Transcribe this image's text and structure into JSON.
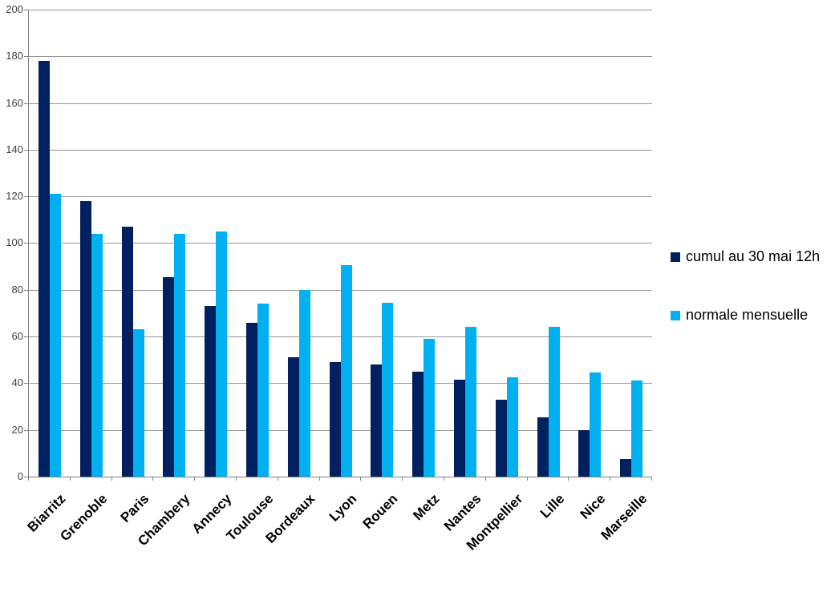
{
  "chart_data": {
    "type": "bar",
    "title": "",
    "xlabel": "",
    "ylabel": "",
    "categories": [
      "Biarritz",
      "Grenoble",
      "Paris",
      "Chambery",
      "Annecy",
      "Toulouse",
      "Bordeaux",
      "Lyon",
      "Rouen",
      "Metz",
      "Nantes",
      "Montpellier",
      "Lille",
      "Nice",
      "Marseille"
    ],
    "series": [
      {
        "name": "cumul au 30 mai 12h",
        "color": "#002060",
        "values": [
          178,
          118,
          107,
          85.5,
          73,
          66,
          51,
          49,
          48,
          45,
          41.5,
          33,
          25.5,
          20,
          7.5
        ]
      },
      {
        "name": "normale mensuelle",
        "color": "#00B0F0",
        "values": [
          121,
          104,
          63,
          104,
          105,
          74,
          80,
          90.5,
          74.5,
          59,
          64,
          42.5,
          64,
          44.5,
          41
        ]
      }
    ],
    "ylim": [
      0,
      200
    ],
    "ytick_step": 20,
    "yticks": [
      0,
      20,
      40,
      60,
      80,
      100,
      120,
      140,
      160,
      180,
      200
    ],
    "grid": "horizontal-major",
    "legend_position": "right",
    "colors": {
      "gridline": "#969696",
      "axis": "#808080",
      "y_tick_label": "#404040",
      "category_label": "#000000",
      "legend_text": "#000000",
      "background": "#FFFFFF"
    }
  }
}
